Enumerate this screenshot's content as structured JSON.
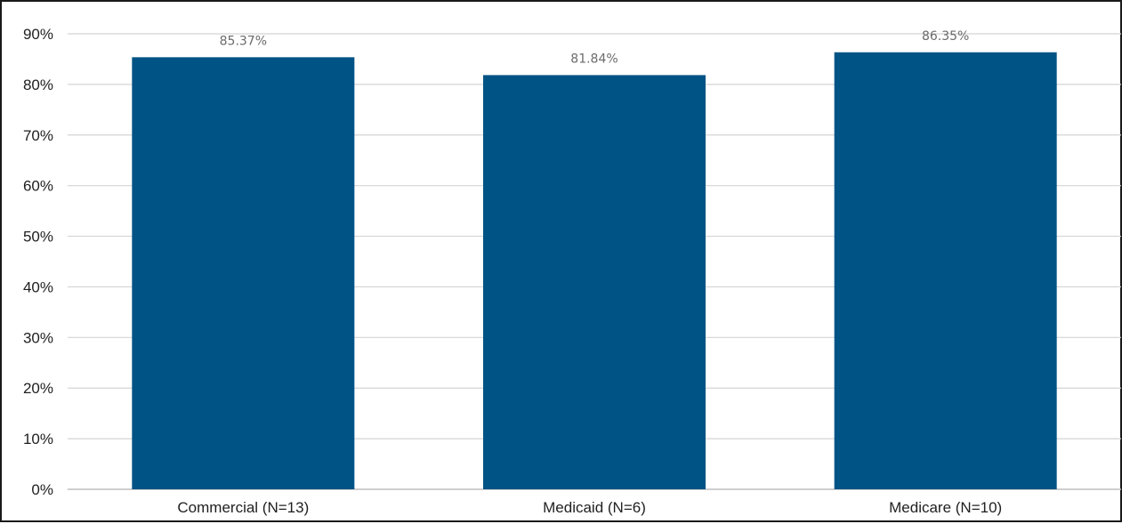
{
  "chart_data": {
    "type": "bar",
    "title": "",
    "xlabel": "",
    "ylabel": "",
    "categories": [
      "Commercial (N=13)",
      "Medicaid (N=6)",
      "Medicare (N=10)"
    ],
    "series": [
      {
        "values": [
          85.37,
          81.84,
          86.35
        ],
        "data_labels": [
          "85.37%",
          "81.84%",
          "86.35%"
        ],
        "color": "#005385"
      }
    ],
    "ylim": [
      0,
      90
    ],
    "yticks": [
      0,
      10,
      20,
      30,
      40,
      50,
      60,
      70,
      80,
      90
    ],
    "ytick_labels": [
      "0%",
      "10%",
      "20%",
      "30%",
      "40%",
      "50%",
      "60%",
      "70%",
      "80%",
      "90%"
    ],
    "grid": "horizontal",
    "legend": "none",
    "colors": {
      "bar": "#005385",
      "grid": "#d4d4d4",
      "frame": "#1a1a1a",
      "tick_text": "#1f1f1f",
      "data_label_text": "#6b6b6b"
    }
  }
}
